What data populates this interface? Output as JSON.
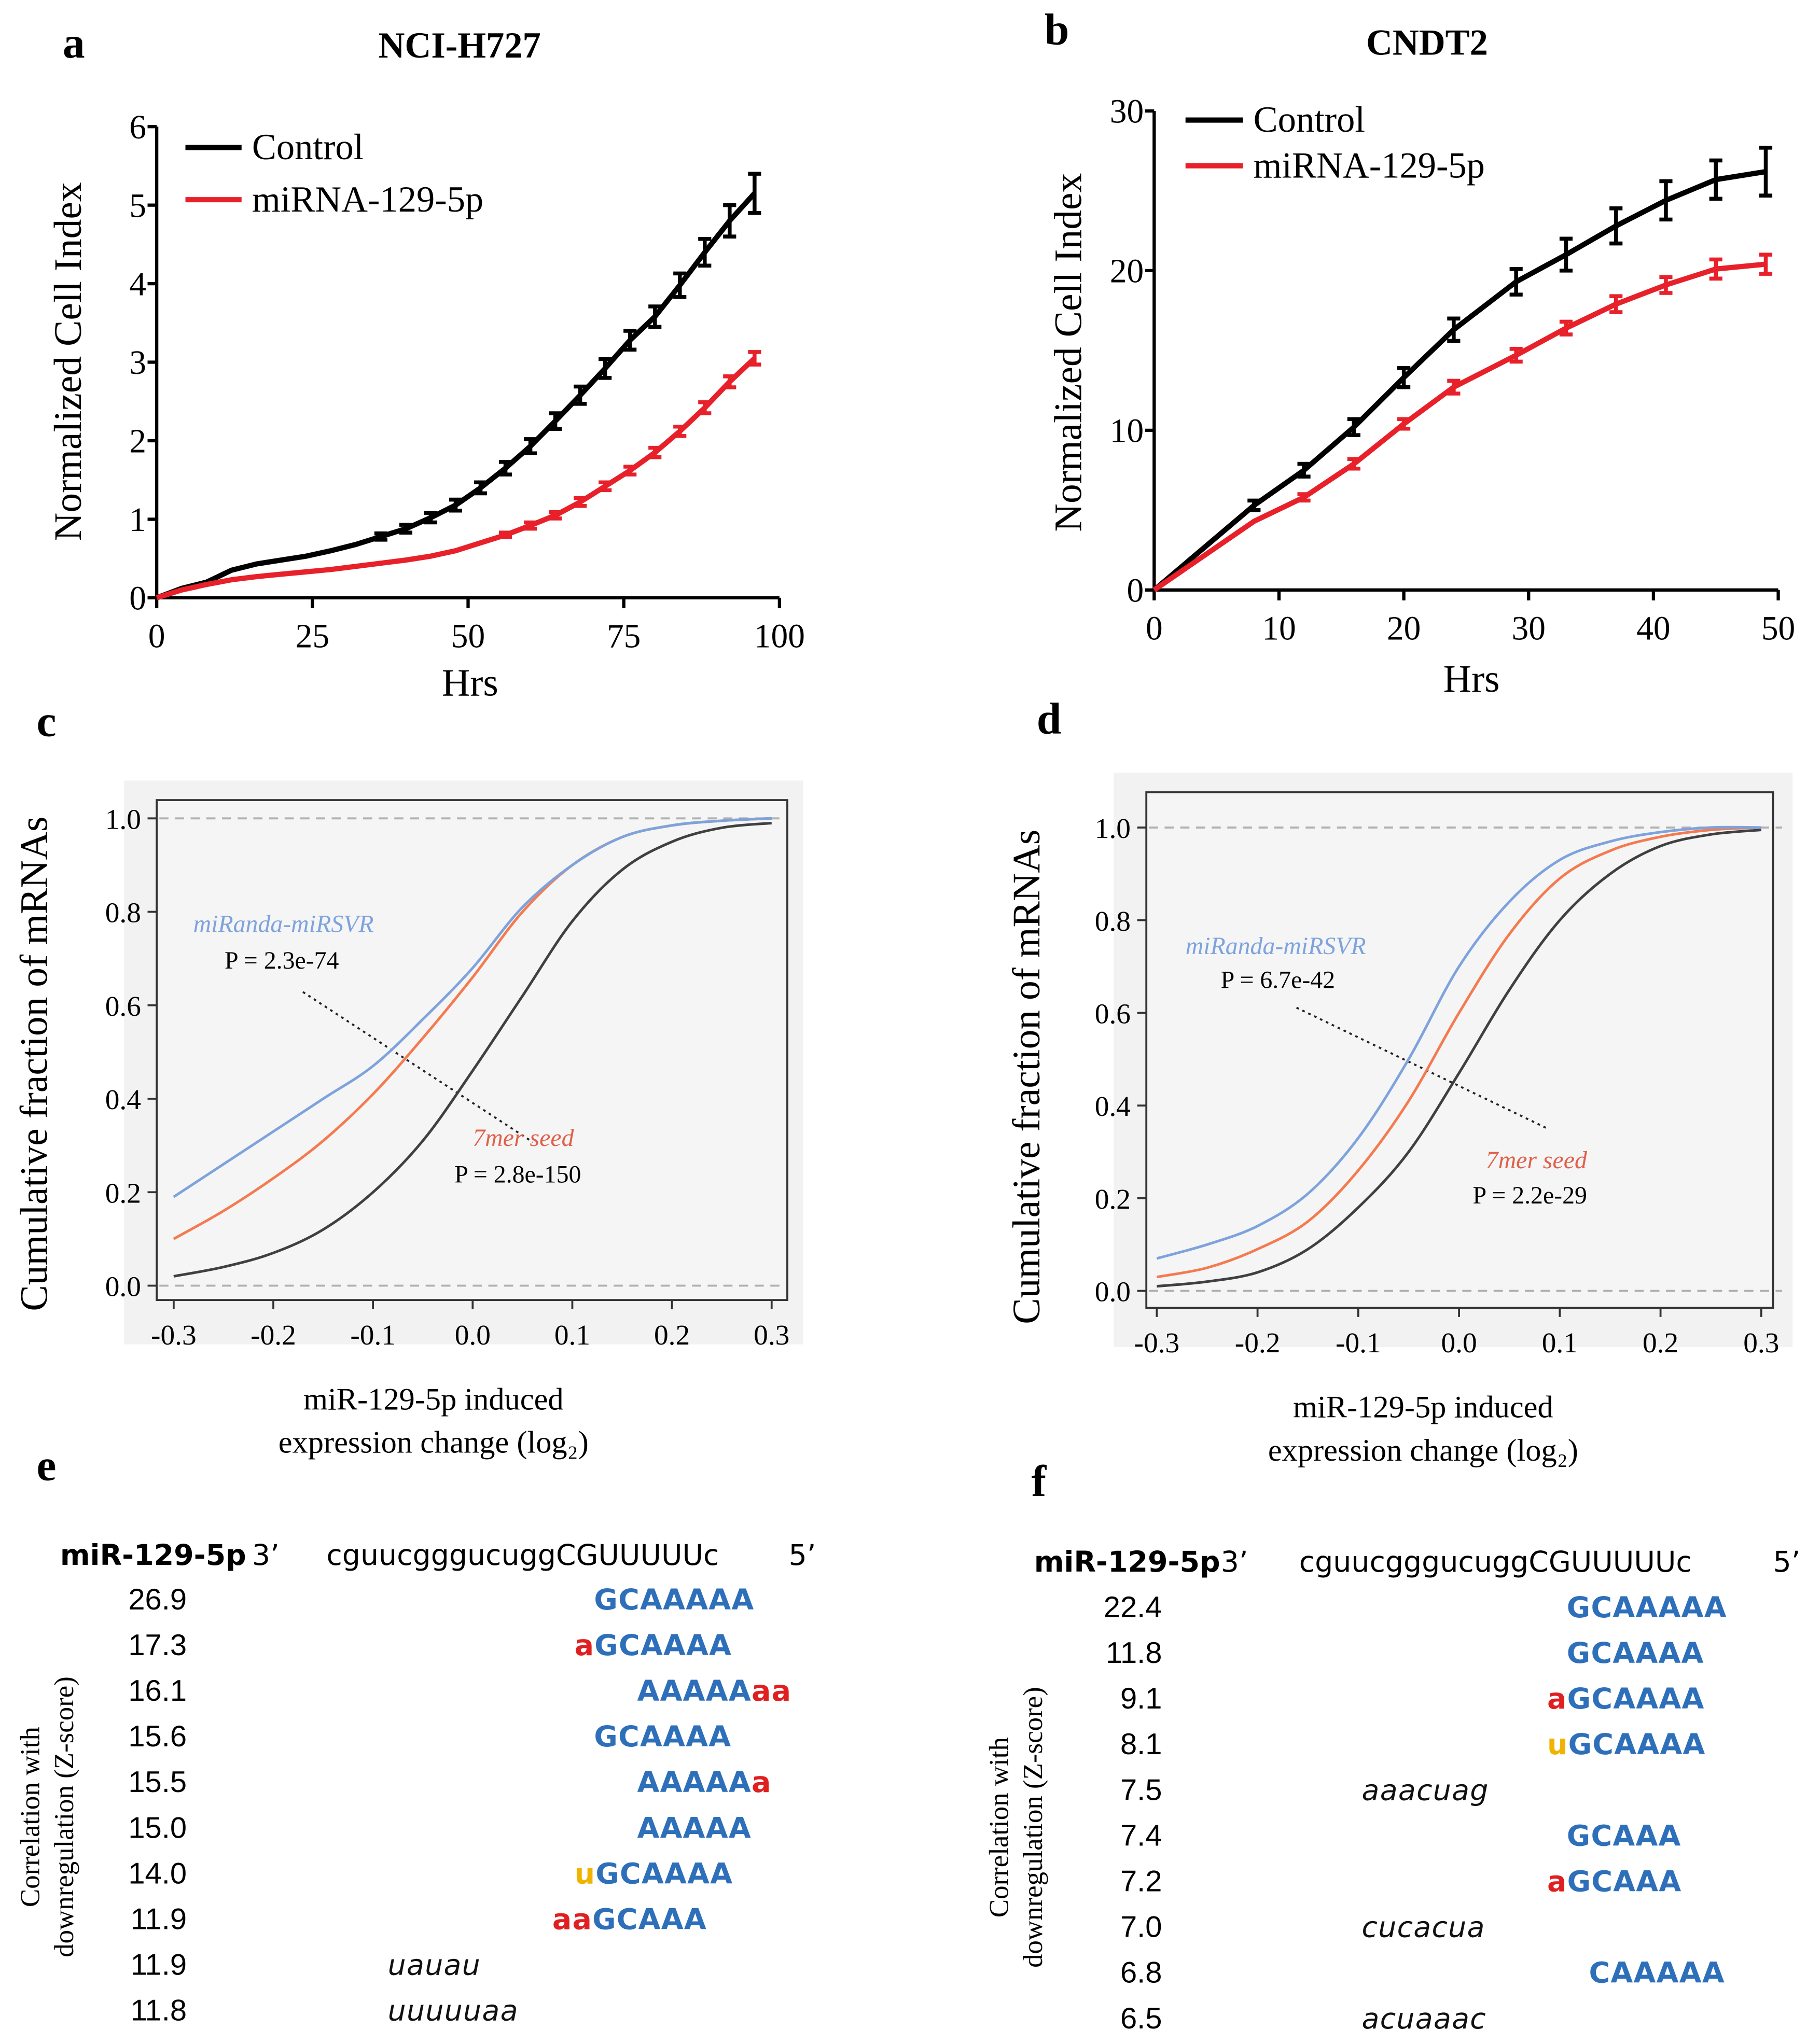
{
  "colors": {
    "control": "#000000",
    "mirna": "#e8202a",
    "cdf_all": "#404040",
    "cdf_7mer": "#f47a50",
    "cdf_mirsvr": "#7ea3dc",
    "motif_blue": "#2e6fba",
    "motif_red": "#e02020",
    "motif_orange": "#f0b400",
    "plot_bg": "#f2f2f2",
    "dash": "#b0b0b0"
  },
  "panels": {
    "a": {
      "letter": "a",
      "title": "NCI-H727"
    },
    "b": {
      "letter": "b",
      "title": "CNDT2"
    },
    "c": {
      "letter": "c",
      "ann_blue": "miRanda-miRSVR",
      "ann_blue_p": "P = 2.3e-74",
      "ann_red": "7mer seed",
      "ann_red_p": "P = 2.8e-150"
    },
    "d": {
      "letter": "d",
      "ann_blue": "miRanda-miRSVR",
      "ann_blue_p": "P = 6.7e-42",
      "ann_red": "7mer seed",
      "ann_red_p": "P = 2.2e-29"
    },
    "e": {
      "letter": "e"
    },
    "f": {
      "letter": "f"
    }
  },
  "chart_data": [
    {
      "id": "a",
      "type": "line",
      "title": "NCI-H727",
      "xlabel": "Hrs",
      "ylabel": "Normalized Cell Index",
      "xlim": [
        0,
        100
      ],
      "ylim": [
        0,
        6
      ],
      "xticks": [
        "0",
        "25",
        "50",
        "75",
        "100"
      ],
      "yticks": [
        "0",
        "1",
        "2",
        "3",
        "4",
        "5",
        "6"
      ],
      "legend": "top-left",
      "grid": false,
      "x": [
        0,
        4,
        8,
        12,
        16,
        20,
        24,
        28,
        32,
        36,
        40,
        44,
        48,
        52,
        56,
        60,
        64,
        68,
        72,
        76,
        80,
        84,
        88,
        92,
        96
      ],
      "series": [
        {
          "name": "Control",
          "values": [
            0,
            0.12,
            0.2,
            0.35,
            0.43,
            0.48,
            0.53,
            0.6,
            0.68,
            0.78,
            0.88,
            1.02,
            1.18,
            1.4,
            1.65,
            1.93,
            2.25,
            2.58,
            2.92,
            3.28,
            3.58,
            3.98,
            4.4,
            4.8,
            5.15
          ],
          "errors": [
            0,
            0,
            0,
            0,
            0,
            0,
            0,
            0,
            0,
            0.04,
            0.05,
            0.06,
            0.07,
            0.07,
            0.08,
            0.09,
            0.1,
            0.11,
            0.12,
            0.12,
            0.13,
            0.15,
            0.17,
            0.2,
            0.25
          ]
        },
        {
          "name": "miRNA-129-5p",
          "values": [
            0,
            0.1,
            0.17,
            0.23,
            0.27,
            0.3,
            0.33,
            0.36,
            0.4,
            0.44,
            0.48,
            0.53,
            0.6,
            0.7,
            0.8,
            0.92,
            1.05,
            1.22,
            1.42,
            1.62,
            1.85,
            2.12,
            2.42,
            2.75,
            3.05
          ],
          "errors": [
            0,
            0,
            0,
            0,
            0,
            0,
            0,
            0,
            0,
            0,
            0,
            0,
            0,
            0,
            0.03,
            0.04,
            0.04,
            0.05,
            0.05,
            0.05,
            0.06,
            0.06,
            0.07,
            0.07,
            0.08
          ]
        }
      ]
    },
    {
      "id": "b",
      "type": "line",
      "title": "CNDT2",
      "xlabel": "Hrs",
      "ylabel": "Normalized Cell Index",
      "xlim": [
        0,
        50
      ],
      "ylim": [
        0,
        30
      ],
      "xticks": [
        "0",
        "10",
        "20",
        "30",
        "40",
        "50"
      ],
      "yticks": [
        "0",
        "10",
        "20",
        "30"
      ],
      "legend": "top-left",
      "grid": false,
      "x": [
        0,
        8,
        12,
        16,
        20,
        24,
        29,
        33,
        37,
        41,
        45,
        49
      ],
      "series": [
        {
          "name": "Control",
          "values": [
            0,
            5.3,
            7.5,
            10.2,
            13.3,
            16.3,
            19.3,
            21,
            22.8,
            24.4,
            25.7,
            26.2
          ],
          "errors": [
            0,
            0.3,
            0.4,
            0.5,
            0.6,
            0.7,
            0.8,
            1.0,
            1.1,
            1.2,
            1.2,
            1.5
          ]
        },
        {
          "name": "miRNA-129-5p",
          "values": [
            0,
            4.3,
            5.8,
            7.9,
            10.4,
            12.7,
            14.7,
            16.4,
            17.9,
            19.1,
            20.1,
            20.4
          ],
          "errors": [
            0,
            0,
            0.2,
            0.3,
            0.3,
            0.4,
            0.4,
            0.4,
            0.5,
            0.5,
            0.6,
            0.6
          ]
        }
      ]
    },
    {
      "id": "c",
      "type": "line",
      "xlabel": "miR-129-5p induced",
      "xlabel2": "expression change (log₂)",
      "ylabel": "Cumulative fraction of mRNAs",
      "xlim": [
        -0.3,
        0.3
      ],
      "ylim": [
        0.0,
        1.0
      ],
      "xticks": [
        "-0.3",
        "-0.2",
        "-0.1",
        "0.0",
        "0.1",
        "0.2",
        "0.3"
      ],
      "yticks": [
        "0.0",
        "0.2",
        "0.4",
        "0.6",
        "0.8",
        "1.0"
      ],
      "grid": false,
      "x": [
        -0.3,
        -0.25,
        -0.2,
        -0.15,
        -0.1,
        -0.05,
        0,
        0.05,
        0.1,
        0.15,
        0.2,
        0.25,
        0.3
      ],
      "series": [
        {
          "key": "all",
          "values": [
            0.02,
            0.04,
            0.07,
            0.12,
            0.2,
            0.31,
            0.46,
            0.62,
            0.78,
            0.89,
            0.95,
            0.98,
            0.99
          ]
        },
        {
          "key": "7mer seed",
          "values": [
            0.1,
            0.16,
            0.23,
            0.31,
            0.41,
            0.53,
            0.66,
            0.8,
            0.9,
            0.96,
            0.985,
            0.995,
            1.0
          ]
        },
        {
          "key": "miRanda-miRSVR",
          "values": [
            0.19,
            0.26,
            0.33,
            0.4,
            0.47,
            0.57,
            0.68,
            0.81,
            0.9,
            0.96,
            0.985,
            0.995,
            1.0
          ]
        }
      ]
    },
    {
      "id": "d",
      "type": "line",
      "xlabel": "miR-129-5p induced",
      "xlabel2": "expression change (log₂)",
      "ylabel": "Cumulative fraction of mRNAs",
      "xlim": [
        -0.3,
        0.3
      ],
      "ylim": [
        0.0,
        1.0
      ],
      "xticks": [
        "-0.3",
        "-0.2",
        "-0.1",
        "0.0",
        "0.1",
        "0.2",
        "0.3"
      ],
      "yticks": [
        "0.0",
        "0.2",
        "0.4",
        "0.6",
        "0.8",
        "1.0"
      ],
      "grid": false,
      "x": [
        -0.3,
        -0.25,
        -0.2,
        -0.15,
        -0.1,
        -0.05,
        0,
        0.05,
        0.1,
        0.15,
        0.2,
        0.25,
        0.3
      ],
      "series": [
        {
          "key": "all",
          "values": [
            0.01,
            0.02,
            0.04,
            0.09,
            0.18,
            0.3,
            0.47,
            0.65,
            0.8,
            0.9,
            0.96,
            0.985,
            0.995
          ]
        },
        {
          "key": "7mer seed",
          "values": [
            0.03,
            0.05,
            0.09,
            0.15,
            0.26,
            0.41,
            0.6,
            0.77,
            0.89,
            0.95,
            0.98,
            0.995,
            1.0
          ]
        },
        {
          "key": "miRanda-miRSVR",
          "values": [
            0.07,
            0.1,
            0.14,
            0.21,
            0.33,
            0.5,
            0.7,
            0.84,
            0.93,
            0.97,
            0.99,
            1.0,
            1.0
          ]
        }
      ]
    }
  ],
  "seq_panels": {
    "e": {
      "mirna_label": "miR-129-5p",
      "three_prime": "3’",
      "sequence": "cguucgggucuggCGUUUUUc",
      "five_prime": "5’",
      "ylabel_line1": "Correlation with",
      "ylabel_line2": "downregulation (Z-score)",
      "rows": [
        {
          "score": "26.9",
          "segments": [
            {
              "t": "GCAAAAA",
              "c": "blue"
            }
          ]
        },
        {
          "score": "17.3",
          "segments": [
            {
              "t": "a",
              "c": "red"
            },
            {
              "t": "GCAAAA",
              "c": "blue"
            }
          ]
        },
        {
          "score": "16.1",
          "segments": [
            {
              "t": "AAAAA",
              "c": "blue"
            },
            {
              "t": "aa",
              "c": "red"
            }
          ]
        },
        {
          "score": "15.6",
          "segments": [
            {
              "t": "GCAAAA",
              "c": "blue"
            }
          ]
        },
        {
          "score": "15.5",
          "segments": [
            {
              "t": "AAAAA",
              "c": "blue"
            },
            {
              "t": "a",
              "c": "red"
            }
          ]
        },
        {
          "score": "15.0",
          "segments": [
            {
              "t": "AAAAA",
              "c": "blue"
            }
          ]
        },
        {
          "score": "14.0",
          "segments": [
            {
              "t": "u",
              "c": "orange"
            },
            {
              "t": "GCAAAA",
              "c": "blue"
            }
          ]
        },
        {
          "score": "11.9",
          "segments": [
            {
              "t": "aa",
              "c": "red"
            },
            {
              "t": "GCAAA",
              "c": "blue"
            }
          ]
        },
        {
          "score": "11.9",
          "segments": [
            {
              "t": "uauau",
              "c": "black"
            }
          ]
        },
        {
          "score": "11.8",
          "segments": [
            {
              "t": "uuuuuaa",
              "c": "black"
            }
          ]
        }
      ]
    },
    "f": {
      "mirna_label": "miR-129-5p",
      "three_prime": "3’",
      "sequence": "cguucgggucuggCGUUUUUc",
      "five_prime": "5’",
      "ylabel_line1": "Correlation with",
      "ylabel_line2": "downregulation (Z-score)",
      "rows": [
        {
          "score": "22.4",
          "segments": [
            {
              "t": "GCAAAAA",
              "c": "blue"
            }
          ]
        },
        {
          "score": "11.8",
          "segments": [
            {
              "t": "GCAAAA",
              "c": "blue"
            }
          ]
        },
        {
          "score": "9.1",
          "segments": [
            {
              "t": "a",
              "c": "red"
            },
            {
              "t": "GCAAAA",
              "c": "blue"
            }
          ]
        },
        {
          "score": "8.1",
          "segments": [
            {
              "t": "u",
              "c": "orange"
            },
            {
              "t": "GCAAAA",
              "c": "blue"
            }
          ]
        },
        {
          "score": "7.5",
          "segments": [
            {
              "t": "aaacuag",
              "c": "black"
            }
          ]
        },
        {
          "score": "7.4",
          "segments": [
            {
              "t": "GCAAA",
              "c": "blue"
            }
          ]
        },
        {
          "score": "7.2",
          "segments": [
            {
              "t": "a",
              "c": "red"
            },
            {
              "t": "GCAAA",
              "c": "blue"
            }
          ]
        },
        {
          "score": "7.0",
          "segments": [
            {
              "t": "cucacua",
              "c": "black"
            }
          ]
        },
        {
          "score": "6.8",
          "segments": [
            {
              "t": "CAAAAA",
              "c": "blue"
            }
          ]
        },
        {
          "score": "6.5",
          "segments": [
            {
              "t": "acuaaac",
              "c": "black"
            }
          ]
        }
      ]
    }
  }
}
